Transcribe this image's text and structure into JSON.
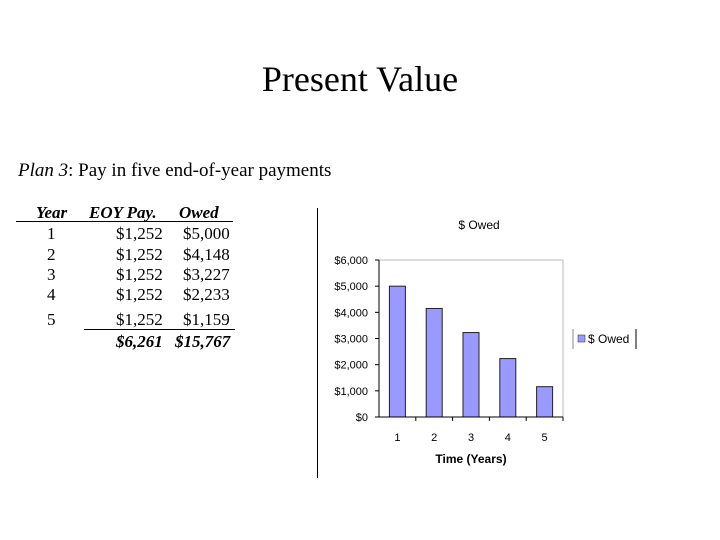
{
  "slide": {
    "title": "Present Value",
    "plan_name": "Plan 3",
    "plan_desc": ": Pay in five end-of-year payments"
  },
  "table": {
    "headers": [
      "Year",
      "EOY Pay.",
      "Owed"
    ],
    "rows": [
      [
        "1",
        "$1,252",
        "$5,000"
      ],
      [
        "2",
        "$1,252",
        "$4,148"
      ],
      [
        "3",
        "$1,252",
        "$3,227"
      ],
      [
        "4",
        "$1,252",
        "$2,233"
      ],
      [
        "5",
        "$1,252",
        "$1,159"
      ]
    ],
    "totals": [
      "",
      "$6,261",
      "$15,767"
    ]
  },
  "chart_data": {
    "type": "bar",
    "title": "$ Owed",
    "categories": [
      "1",
      "2",
      "3",
      "4",
      "5"
    ],
    "series": [
      {
        "name": "$ Owed",
        "values": [
          5000,
          4148,
          3227,
          2233,
          1159
        ]
      }
    ],
    "xlabel": "Time (Years)",
    "ylabel": "",
    "ylim": [
      0,
      6000
    ],
    "yticks": [
      "$0",
      "$1,000",
      "$2,000",
      "$3,000",
      "$4,000",
      "$5,000",
      "$6,000"
    ],
    "legend": "right",
    "grid": false,
    "bar_color": "#9999ff"
  }
}
